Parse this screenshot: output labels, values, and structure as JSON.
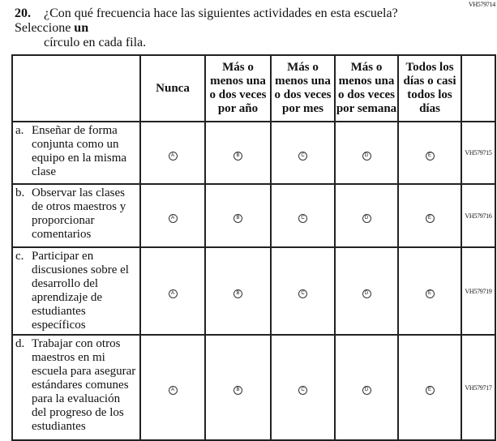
{
  "question": {
    "number": "20.",
    "text_line1_pre": "¿Con qué frecuencia hace las siguientes actividades en esta escuela? Seleccione ",
    "text_line1_bold": "un",
    "text_line2": "círculo en cada fila.",
    "code": "VH579714"
  },
  "columns": [
    "Nunca",
    "Más o menos una o dos veces por año",
    "Más o menos una o dos veces por mes",
    "Más o menos una o dos veces por semana",
    "Todos los días o casi todos los días"
  ],
  "options": [
    "A",
    "B",
    "C",
    "D",
    "E"
  ],
  "rows": [
    {
      "letter": "a.",
      "label": "Enseñar de forma conjunta como un equipo en la misma clase",
      "code": "VH579715"
    },
    {
      "letter": "b.",
      "label": "Observar las clases de otros maestros y proporcionar comentarios",
      "code": "VH579716"
    },
    {
      "letter": "c.",
      "label": "Participar en discusiones sobre el desarrollo del aprendizaje de estudiantes específicos",
      "code": "VH579719"
    },
    {
      "letter": "d.",
      "label": "Trabajar con otros maestros en mi escuela para asegurar estándares comunes para la evaluación del progreso de los estudiantes",
      "code": "VH579717"
    }
  ]
}
